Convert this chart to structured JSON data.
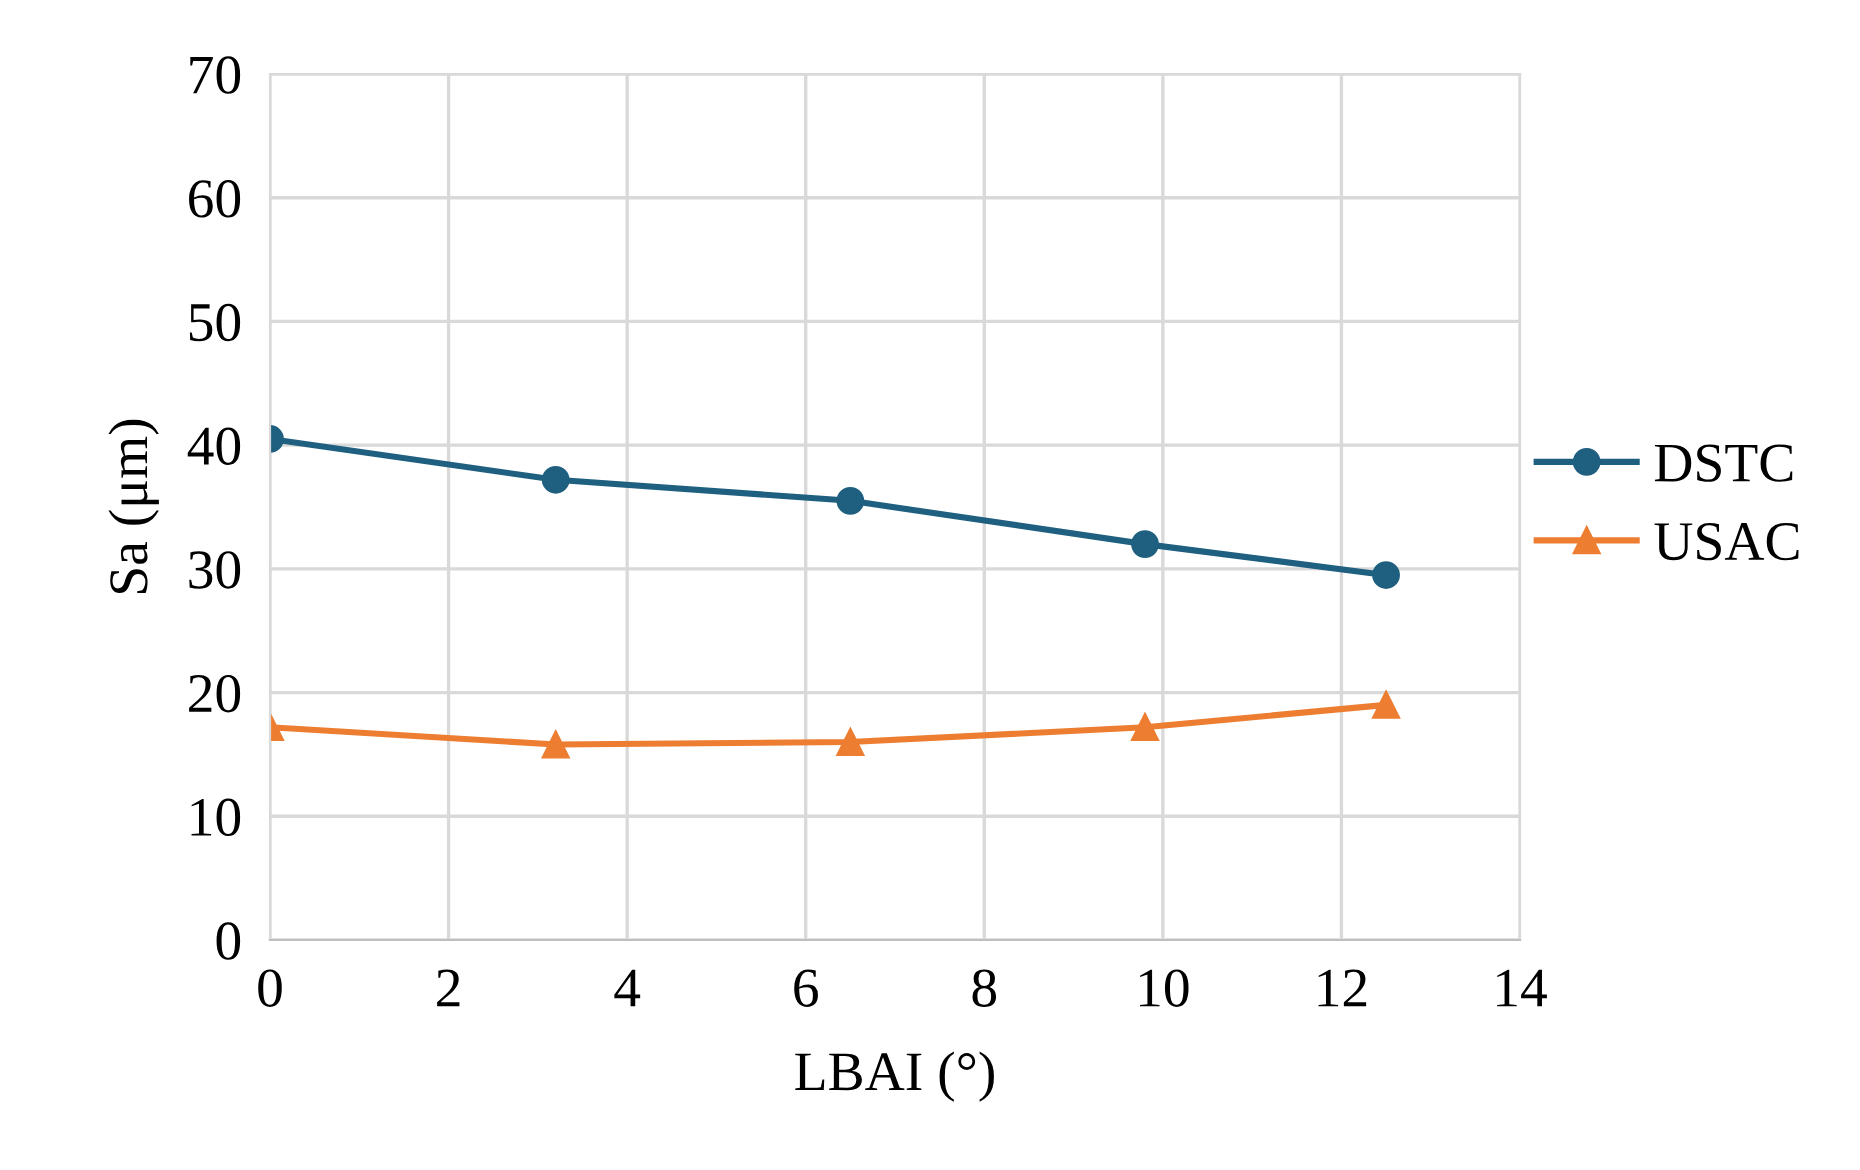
{
  "chart_data": {
    "type": "line",
    "xlabel": "LBAI (°)",
    "ylabel": "Sa (μm)",
    "xlim": [
      0,
      14
    ],
    "xticks": [
      0,
      2,
      4,
      6,
      8,
      10,
      12,
      14
    ],
    "ylim": [
      0,
      70
    ],
    "yticks": [
      0,
      10,
      20,
      30,
      40,
      50,
      60,
      70
    ],
    "grid": true,
    "legend": "right",
    "line_style": "solid",
    "series": [
      {
        "name": "DSTC",
        "color": "#1f5f7f",
        "marker": "circle",
        "x": [
          0,
          3.2,
          6.5,
          9.8,
          12.5
        ],
        "values": [
          40.5,
          37.2,
          35.5,
          32.0,
          29.5
        ]
      },
      {
        "name": "USAC",
        "color": "#ed7d31",
        "marker": "triangle",
        "x": [
          0,
          3.2,
          6.5,
          9.8,
          12.5
        ],
        "values": [
          17.2,
          15.8,
          16.0,
          17.2,
          19.0
        ]
      }
    ]
  }
}
